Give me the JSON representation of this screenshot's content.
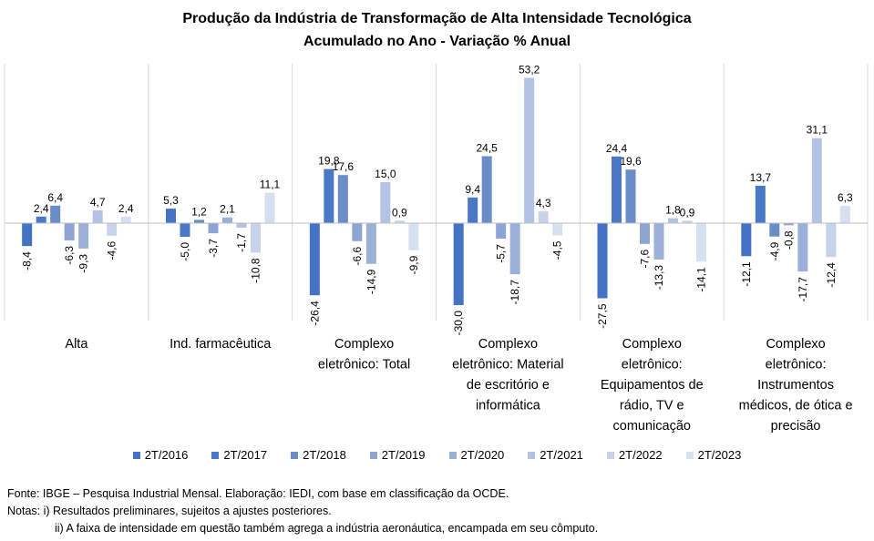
{
  "chart_data": {
    "type": "bar",
    "title": "Produção da Indústria de Transformação de Alta Intensidade Tecnológica",
    "subtitle": "Acumulado no Ano - Variação % Anual",
    "categories": [
      "Alta",
      "Ind. farmacêutica",
      "Complexo eletrônico: Total",
      "Complexo eletrônico: Material de escritório e informática",
      "Complexo eletrônico: Equipamentos de rádio, TV e comunicação",
      "Complexo eletrônico: Instrumentos médicos, de ótica e precisão"
    ],
    "category_lines": [
      [
        "Alta"
      ],
      [
        "Ind. farmacêutica"
      ],
      [
        "Complexo",
        "eletrônico: Total"
      ],
      [
        "Complexo",
        "eletrônico: Material",
        "de escritório e",
        "informática"
      ],
      [
        "Complexo",
        "eletrônico:",
        "Equipamentos de",
        "rádio, TV e",
        "comunicação"
      ],
      [
        "Complexo",
        "eletrônico:",
        "Instrumentos",
        "médicos, de ótica e",
        "precisão"
      ]
    ],
    "series": [
      {
        "name": "2T/2016",
        "color": "#4472c4",
        "values": [
          -8.4,
          5.3,
          -26.4,
          -30.0,
          -27.5,
          -12.1
        ]
      },
      {
        "name": "2T/2017",
        "color": "#4a78c4",
        "values": [
          2.4,
          -5.0,
          19.8,
          9.4,
          24.4,
          13.7
        ]
      },
      {
        "name": "2T/2018",
        "color": "#6a8dc8",
        "values": [
          6.4,
          1.2,
          17.6,
          24.5,
          19.6,
          -4.9
        ]
      },
      {
        "name": "2T/2019",
        "color": "#8ea5d3",
        "values": [
          -6.3,
          -3.7,
          -6.6,
          -5.7,
          -7.6,
          -0.8
        ]
      },
      {
        "name": "2T/2020",
        "color": "#9bb0d9",
        "values": [
          -9.3,
          2.1,
          -14.9,
          -18.7,
          -13.3,
          -17.7
        ]
      },
      {
        "name": "2T/2021",
        "color": "#b4c3e3",
        "values": [
          4.7,
          -1.7,
          15.0,
          53.2,
          1.8,
          31.1
        ]
      },
      {
        "name": "2T/2022",
        "color": "#c7d3ea",
        "values": [
          -4.6,
          -10.8,
          0.9,
          4.3,
          0.9,
          -12.4
        ]
      },
      {
        "name": "2T/2023",
        "color": "#d6e0f1",
        "values": [
          2.4,
          11.1,
          -9.9,
          -4.5,
          -14.1,
          6.3
        ]
      }
    ],
    "value_labels": [
      [
        "-8,4",
        "5,3",
        "-26,4",
        "-30,0",
        "-27,5",
        "-12,1"
      ],
      [
        "2,4",
        "-5,0",
        "19,8",
        "9,4",
        "24,4",
        "13,7"
      ],
      [
        "6,4",
        "1,2",
        "17,6",
        "24,5",
        "19,6",
        "-4,9"
      ],
      [
        "-6,3",
        "-3,7",
        "-6,6",
        "-5,7",
        "-7,6",
        "-0,8"
      ],
      [
        "-9,3",
        "2,1",
        "-14,9",
        "-18,7",
        "-13,3",
        "-17,7"
      ],
      [
        "4,7",
        "-1,7",
        "15,0",
        "53,2",
        "1,8",
        "31,1"
      ],
      [
        "-4,6",
        "-10,8",
        "0,9",
        "4,3",
        "0,9",
        "-12,4"
      ],
      [
        "2,4",
        "11,1",
        "-9,9",
        "-4,5",
        "-14,1",
        "6,3"
      ]
    ],
    "legend_position": "bottom",
    "grid": false
  },
  "notes": {
    "source": "Fonte: IBGE – Pesquisa Industrial Mensal. Elaboração: IEDI, com base em classificação da OCDE.",
    "note1": "Notas: i) Resultados preliminares, sujeitos a ajustes posteriores.",
    "note2": "ii) A faixa de intensidade em questão também  agrega a indústria aeronáutica, encampada em seu cômputo."
  }
}
